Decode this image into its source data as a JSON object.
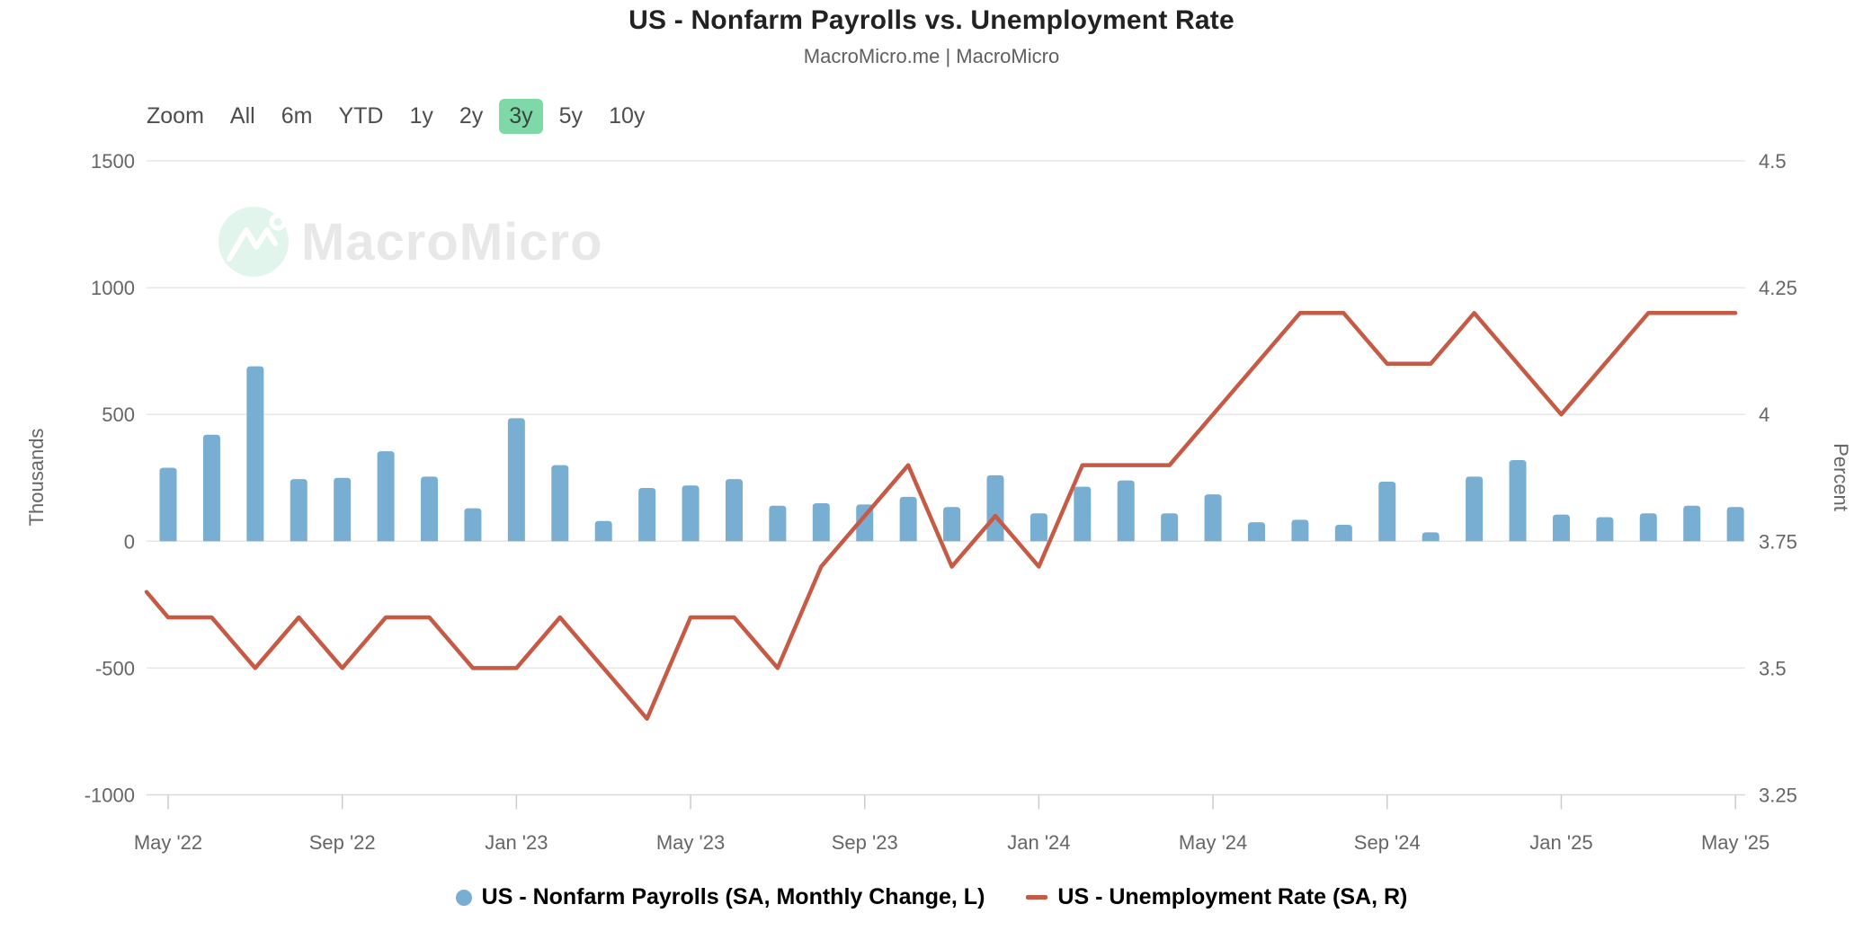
{
  "header": {
    "title": "US - Nonfarm Payrolls vs. Unemployment Rate",
    "subtitle": "MacroMicro.me | MacroMicro"
  },
  "toolbar": {
    "zoom_label": "Zoom",
    "items": [
      {
        "label": "All",
        "active": false
      },
      {
        "label": "6m",
        "active": false
      },
      {
        "label": "YTD",
        "active": false
      },
      {
        "label": "1y",
        "active": false
      },
      {
        "label": "2y",
        "active": false
      },
      {
        "label": "3y",
        "active": true
      },
      {
        "label": "5y",
        "active": false
      },
      {
        "label": "10y",
        "active": false
      }
    ],
    "active_bg_color": "#7fd8a8"
  },
  "watermark": {
    "text": "MacroMicro",
    "icon": "macromicro-logo",
    "circle_color": "#e2f5ec",
    "text_color": "#e8e8e8"
  },
  "legend": {
    "items": [
      {
        "marker": "circle",
        "label": "US - Nonfarm Payrolls (SA, Monthly Change, L)"
      },
      {
        "marker": "line",
        "label": "US - Unemployment Rate (SA, R)"
      }
    ]
  },
  "chart_data": {
    "type": "combo",
    "categories": [
      "May '22",
      "Jun '22",
      "Jul '22",
      "Aug '22",
      "Sep '22",
      "Oct '22",
      "Nov '22",
      "Dec '22",
      "Jan '23",
      "Feb '23",
      "Mar '23",
      "Apr '23",
      "May '23",
      "Jun '23",
      "Jul '23",
      "Aug '23",
      "Sep '23",
      "Oct '23",
      "Nov '23",
      "Dec '23",
      "Jan '24",
      "Feb '24",
      "Mar '24",
      "Apr '24",
      "May '24",
      "Jun '24",
      "Jul '24",
      "Aug '24",
      "Sep '24",
      "Oct '24",
      "Nov '24",
      "Dec '24",
      "Jan '25",
      "Feb '25",
      "Mar '25",
      "Apr '25",
      "May '25"
    ],
    "x_tick_labels": [
      "May '22",
      "Sep '22",
      "Jan '23",
      "May '23",
      "Sep '23",
      "Jan '24",
      "May '24",
      "Sep '24",
      "Jan '25",
      "May '25"
    ],
    "x_tick_every": 4,
    "series": [
      {
        "name": "US - Nonfarm Payrolls (SA, Monthly Change, L)",
        "type": "bar",
        "axis": "left",
        "color": "#79aed3",
        "values": [
          290,
          420,
          690,
          245,
          250,
          355,
          255,
          130,
          485,
          300,
          80,
          210,
          220,
          245,
          140,
          150,
          145,
          175,
          135,
          260,
          110,
          215,
          240,
          110,
          185,
          75,
          85,
          65,
          235,
          35,
          255,
          320,
          105,
          95,
          110,
          140,
          135
        ]
      },
      {
        "name": "US - Unemployment Rate (SA, R)",
        "type": "line",
        "axis": "right",
        "color": "#c65a45",
        "lead_in_value": 3.65,
        "values": [
          3.6,
          3.6,
          3.5,
          3.6,
          3.5,
          3.6,
          3.6,
          3.5,
          3.5,
          3.6,
          3.5,
          3.4,
          3.6,
          3.6,
          3.5,
          3.7,
          3.8,
          3.9,
          3.7,
          3.8,
          3.7,
          3.9,
          3.9,
          3.9,
          4.0,
          4.1,
          4.2,
          4.2,
          4.1,
          4.1,
          4.2,
          4.1,
          4.0,
          4.1,
          4.2,
          4.2,
          4.2
        ]
      }
    ],
    "left_axis": {
      "title": "Thousands",
      "min": -1000,
      "max": 1500,
      "ticks": [
        -1000,
        -500,
        0,
        500,
        1000,
        1500
      ]
    },
    "right_axis": {
      "title": "Percent",
      "min": 3.25,
      "max": 4.5,
      "ticks": [
        3.25,
        3.5,
        3.75,
        4,
        4.25,
        4.5
      ]
    },
    "grid": true,
    "legend_position": "bottom"
  },
  "colors": {
    "bars": "#79aed3",
    "line": "#c65a45",
    "gridline": "#e7e7e7",
    "axis_line": "#d9d9d9",
    "tick_label": "#666666",
    "title": "#222222"
  }
}
